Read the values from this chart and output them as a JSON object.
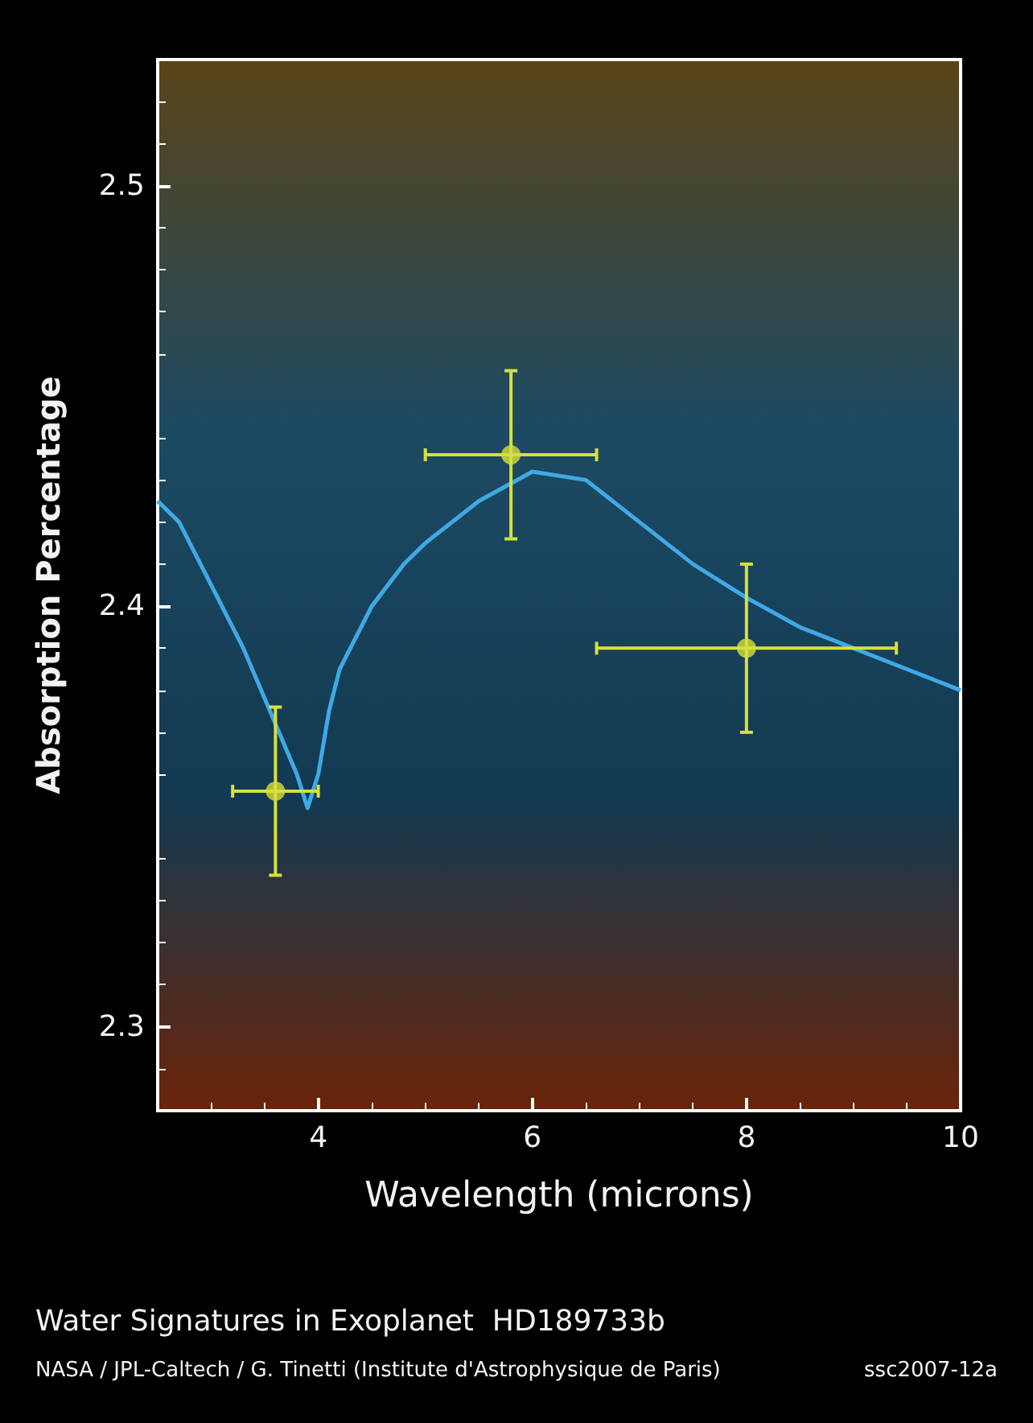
{
  "chart_data": {
    "type": "scatter",
    "title": "Water Signatures in Exoplanet  HD189733b",
    "xlabel": "Wavelength (microns)",
    "ylabel": "Absorption Percentage",
    "annotations": [
      "NASA / JPL-Caltech / G. Tinetti (Institute d'Astrophysique de Paris)",
      "ssc2007-12a"
    ],
    "xlim": [
      2.5,
      10
    ],
    "xticks": [
      4,
      6,
      8,
      10
    ],
    "ylim": [
      2.28,
      2.53
    ],
    "yticks": [
      2.3,
      2.4,
      2.5
    ],
    "grid": false,
    "series": [
      {
        "type": "line",
        "color": "#3fa9e6",
        "marker": "none",
        "line_style": "solid",
        "x": [
          2.5,
          2.7,
          3.0,
          3.3,
          3.5,
          3.7,
          3.8,
          3.9,
          4.0,
          4.1,
          4.2,
          4.5,
          4.8,
          5.0,
          5.5,
          6.0,
          6.5,
          7.0,
          7.5,
          8.0,
          8.5,
          9.0,
          9.5,
          10.0
        ],
        "values": [
          2.425,
          2.42,
          2.405,
          2.39,
          2.378,
          2.366,
          2.36,
          2.352,
          2.36,
          2.375,
          2.385,
          2.4,
          2.41,
          2.415,
          2.425,
          2.432,
          2.43,
          2.42,
          2.41,
          2.402,
          2.395,
          2.39,
          2.385,
          2.38
        ]
      },
      {
        "color": "#d8e03a",
        "marker": "circle",
        "x": [
          3.6,
          5.8,
          8.0
        ],
        "values": [
          2.356,
          2.436,
          2.39
        ],
        "errors": [
          0.02,
          0.02,
          0.02
        ],
        "xerrors": [
          [
            3.2,
            4.0
          ],
          [
            5.0,
            6.6
          ],
          [
            6.6,
            9.4
          ]
        ]
      }
    ]
  }
}
